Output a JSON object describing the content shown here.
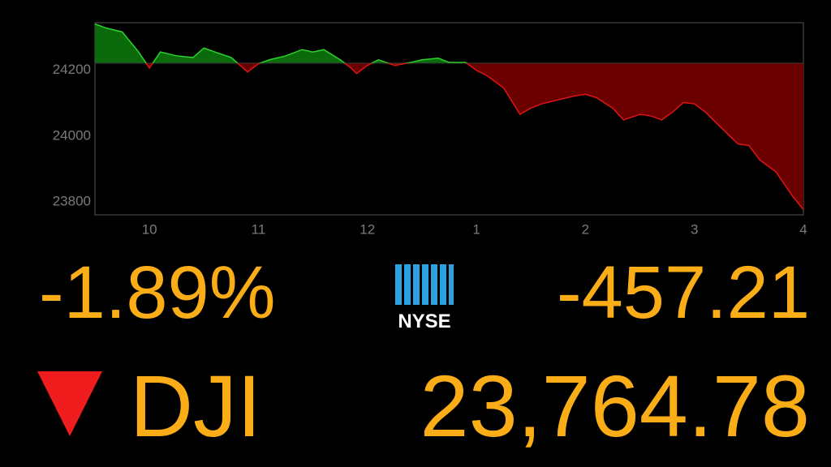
{
  "chart_data": {
    "type": "line",
    "x": [
      9.5,
      9.6,
      9.75,
      9.9,
      10.0,
      10.1,
      10.25,
      10.4,
      10.5,
      10.6,
      10.75,
      10.9,
      11.0,
      11.1,
      11.25,
      11.4,
      11.5,
      11.6,
      11.75,
      11.85,
      11.9,
      12.0,
      12.1,
      12.25,
      12.4,
      12.5,
      12.65,
      12.75,
      12.9,
      13.0,
      13.1,
      13.25,
      13.4,
      13.5,
      13.6,
      13.75,
      13.9,
      14.0,
      14.1,
      14.25,
      14.35,
      14.5,
      14.6,
      14.7,
      14.8,
      14.9,
      15.0,
      15.1,
      15.25,
      15.4,
      15.5,
      15.6,
      15.75,
      15.9,
      16.0
    ],
    "values": [
      24341,
      24329,
      24317,
      24256,
      24207,
      24256,
      24244,
      24239,
      24268,
      24256,
      24239,
      24195,
      24220,
      24232,
      24244,
      24263,
      24256,
      24263,
      24232,
      24207,
      24190,
      24215,
      24232,
      24215,
      24224,
      24232,
      24237,
      24224,
      24224,
      24200,
      24183,
      24146,
      24066,
      24085,
      24098,
      24110,
      24122,
      24127,
      24117,
      24085,
      24049,
      24066,
      24061,
      24049,
      24073,
      24102,
      24098,
      24073,
      24024,
      23976,
      23971,
      23927,
      23890,
      23817,
      23776
    ],
    "baseline": 24222,
    "up_color": "#2bd32b",
    "up_fill": "#0b6a0b",
    "down_color": "#e01414",
    "down_fill": "#6a0000",
    "xlim": [
      9.5,
      16
    ],
    "xticks": [
      10,
      11,
      12,
      {
        "value": 13,
        "label": "1"
      },
      {
        "value": 14,
        "label": "2"
      },
      {
        "value": 15,
        "label": "3"
      },
      {
        "value": 16,
        "label": "4"
      }
    ],
    "ylim": [
      23760,
      24345
    ],
    "yticks": [
      23800,
      24000,
      24200
    ]
  },
  "ticker": {
    "percent": "-1.89%",
    "exchange": "NYSE",
    "change": "-457.21",
    "symbol": "DJI",
    "price": "23,764.78"
  }
}
